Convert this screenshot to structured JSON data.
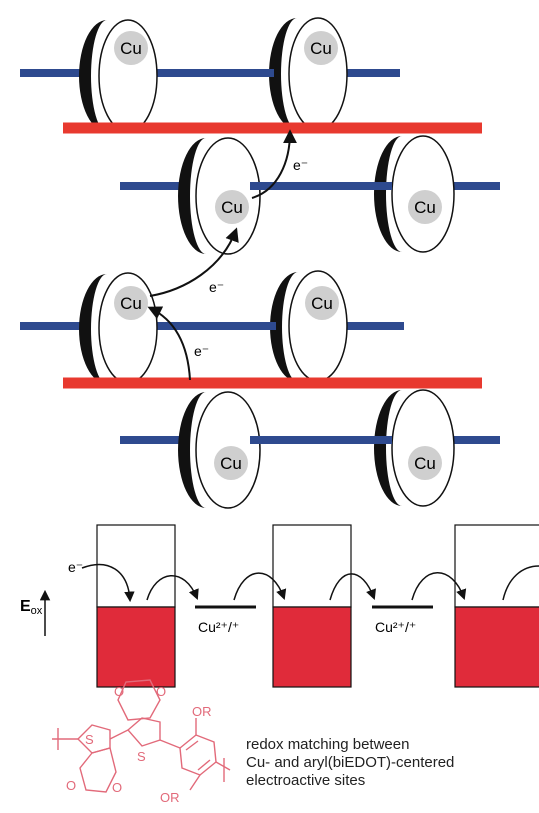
{
  "colors": {
    "polymer_backbone": "#e8392f",
    "rod": "#2e4a8f",
    "ring_dark": "#111111",
    "cu_fill": "#cfcfcf",
    "band_fill": "#e02b3a",
    "molecule_stroke": "#e26a7a",
    "arrow": "#111111"
  },
  "labels": {
    "cu": "Cu",
    "electron": "e⁻",
    "eox_main": "E",
    "eox_sub": "ox",
    "cu_couple_1": "Cu²⁺/⁺",
    "cu_couple_2": "Cu²⁺/⁺"
  },
  "molecule": {
    "atom_s": "S",
    "atom_o": "O",
    "or_group": "OR"
  },
  "caption": {
    "line1": "redox matching between",
    "line2": "Cu- and aryl(biEDOT)-centered",
    "line3": "electroactive sites"
  }
}
